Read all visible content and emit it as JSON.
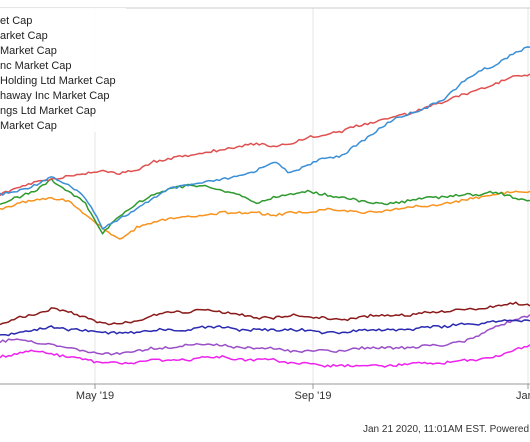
{
  "chart_data": {
    "type": "line",
    "title": "",
    "xlabel": "",
    "ylabel": "",
    "x_tick_labels": [
      "May '19",
      "Sep '19",
      "Jan"
    ],
    "legend_position": "top-left",
    "grid": "vertical",
    "series": [
      {
        "name": "et Cap",
        "color": "#3a8fd6",
        "values": [
          63,
          64,
          66,
          69,
          66,
          62,
          52,
          55,
          58,
          62,
          65,
          66,
          67,
          68,
          69,
          71,
          74,
          70,
          73,
          75,
          76,
          80,
          84,
          88,
          90,
          92,
          95,
          100,
          104,
          106,
          110,
          112
        ]
      },
      {
        "name": "arket Cap",
        "color": "#e05050",
        "values": [
          63,
          65,
          67,
          68,
          69,
          70,
          71,
          70,
          71,
          74,
          75,
          76,
          77,
          78,
          79,
          80,
          79,
          80,
          82,
          83,
          84,
          86,
          87,
          89,
          90,
          92,
          94,
          96,
          98,
          100,
          102,
          103
        ]
      },
      {
        "name": "Market Cap",
        "color": "#2e9a2e",
        "values": [
          60,
          62,
          64,
          68,
          64,
          60,
          50,
          56,
          60,
          63,
          65,
          66,
          66,
          64,
          63,
          60,
          62,
          63,
          64,
          63,
          62,
          61,
          60,
          60,
          61,
          62,
          62,
          63,
          63,
          64,
          62,
          61
        ]
      },
      {
        "name": "nc Market Cap",
        "color": "#f7931e",
        "values": [
          58,
          60,
          61,
          62,
          61,
          56,
          52,
          48,
          52,
          54,
          55,
          56,
          56,
          57,
          57,
          57,
          56,
          57,
          57,
          58,
          58,
          57,
          57,
          58,
          59,
          59,
          60,
          61,
          62,
          63,
          64,
          64
        ]
      },
      {
        "name": "Holding Ltd Market Cap",
        "color": "#8b1a1a",
        "values": [
          20,
          22,
          23,
          25,
          24,
          22,
          20,
          20,
          21,
          23,
          24,
          24,
          25,
          24,
          23,
          22,
          22,
          23,
          22,
          22,
          21,
          22,
          23,
          23,
          23,
          24,
          24,
          25,
          25,
          26,
          27,
          26
        ]
      },
      {
        "name": "haway Inc Market Cap",
        "color": "#2a2ab0",
        "values": [
          16,
          17,
          18,
          19,
          18,
          18,
          17,
          17,
          17,
          18,
          18,
          18,
          19,
          19,
          18,
          18,
          18,
          18,
          18,
          17,
          17,
          18,
          18,
          18,
          18,
          19,
          19,
          20,
          20,
          21,
          21,
          21
        ]
      },
      {
        "name": "ngs Ltd Market Cap",
        "color": "#9a4fc8",
        "values": [
          14,
          15,
          14,
          13,
          12,
          11,
          10,
          10,
          11,
          12,
          12,
          13,
          13,
          13,
          12,
          12,
          12,
          11,
          11,
          11,
          11,
          12,
          12,
          12,
          12,
          13,
          13,
          14,
          16,
          19,
          21,
          23
        ]
      },
      {
        "name": "Market Cap",
        "color": "#ee22ee",
        "values": [
          9,
          10,
          11,
          10,
          9,
          8,
          7,
          7,
          7,
          8,
          8,
          8,
          9,
          9,
          8,
          8,
          8,
          7,
          7,
          6,
          6,
          6,
          6,
          6,
          7,
          7,
          7,
          8,
          8,
          9,
          11,
          13
        ]
      }
    ]
  },
  "footer": {
    "text": "Jan 21 2020, 11:01AM EST.  Powered b"
  }
}
